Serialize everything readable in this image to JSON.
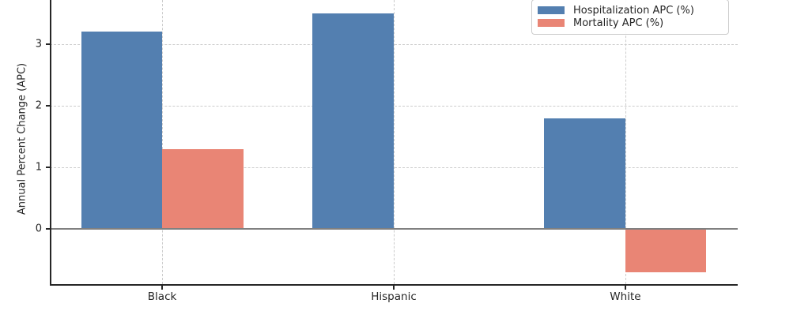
{
  "figure": {
    "background": "#ffffff",
    "text_color": "#262626",
    "grid_color": "#cccccc",
    "spine_color": "#262626",
    "zero_line_color": "#808080",
    "legend_border_color": "#cccccc"
  },
  "chart_data": {
    "type": "bar",
    "title": "",
    "categories": [
      "Black",
      "Hispanic",
      "White"
    ],
    "series": [
      {
        "name": "Hospitalization APC (%)",
        "color": "#537FB0",
        "values": [
          3.2,
          3.5,
          1.8
        ]
      },
      {
        "name": "Mortality APC (%)",
        "color": "#E98575",
        "values": [
          1.3,
          0.0,
          -0.7
        ]
      }
    ],
    "xlabel": "",
    "ylabel": "Annual Percent Change (APC)",
    "yticks": [
      0,
      1,
      2,
      3
    ],
    "ylim_visible": [
      -0.9,
      3.73
    ],
    "bar_width_fraction": 0.35,
    "grid": true,
    "grid_style": "dashed",
    "legend_position": "upper right"
  }
}
